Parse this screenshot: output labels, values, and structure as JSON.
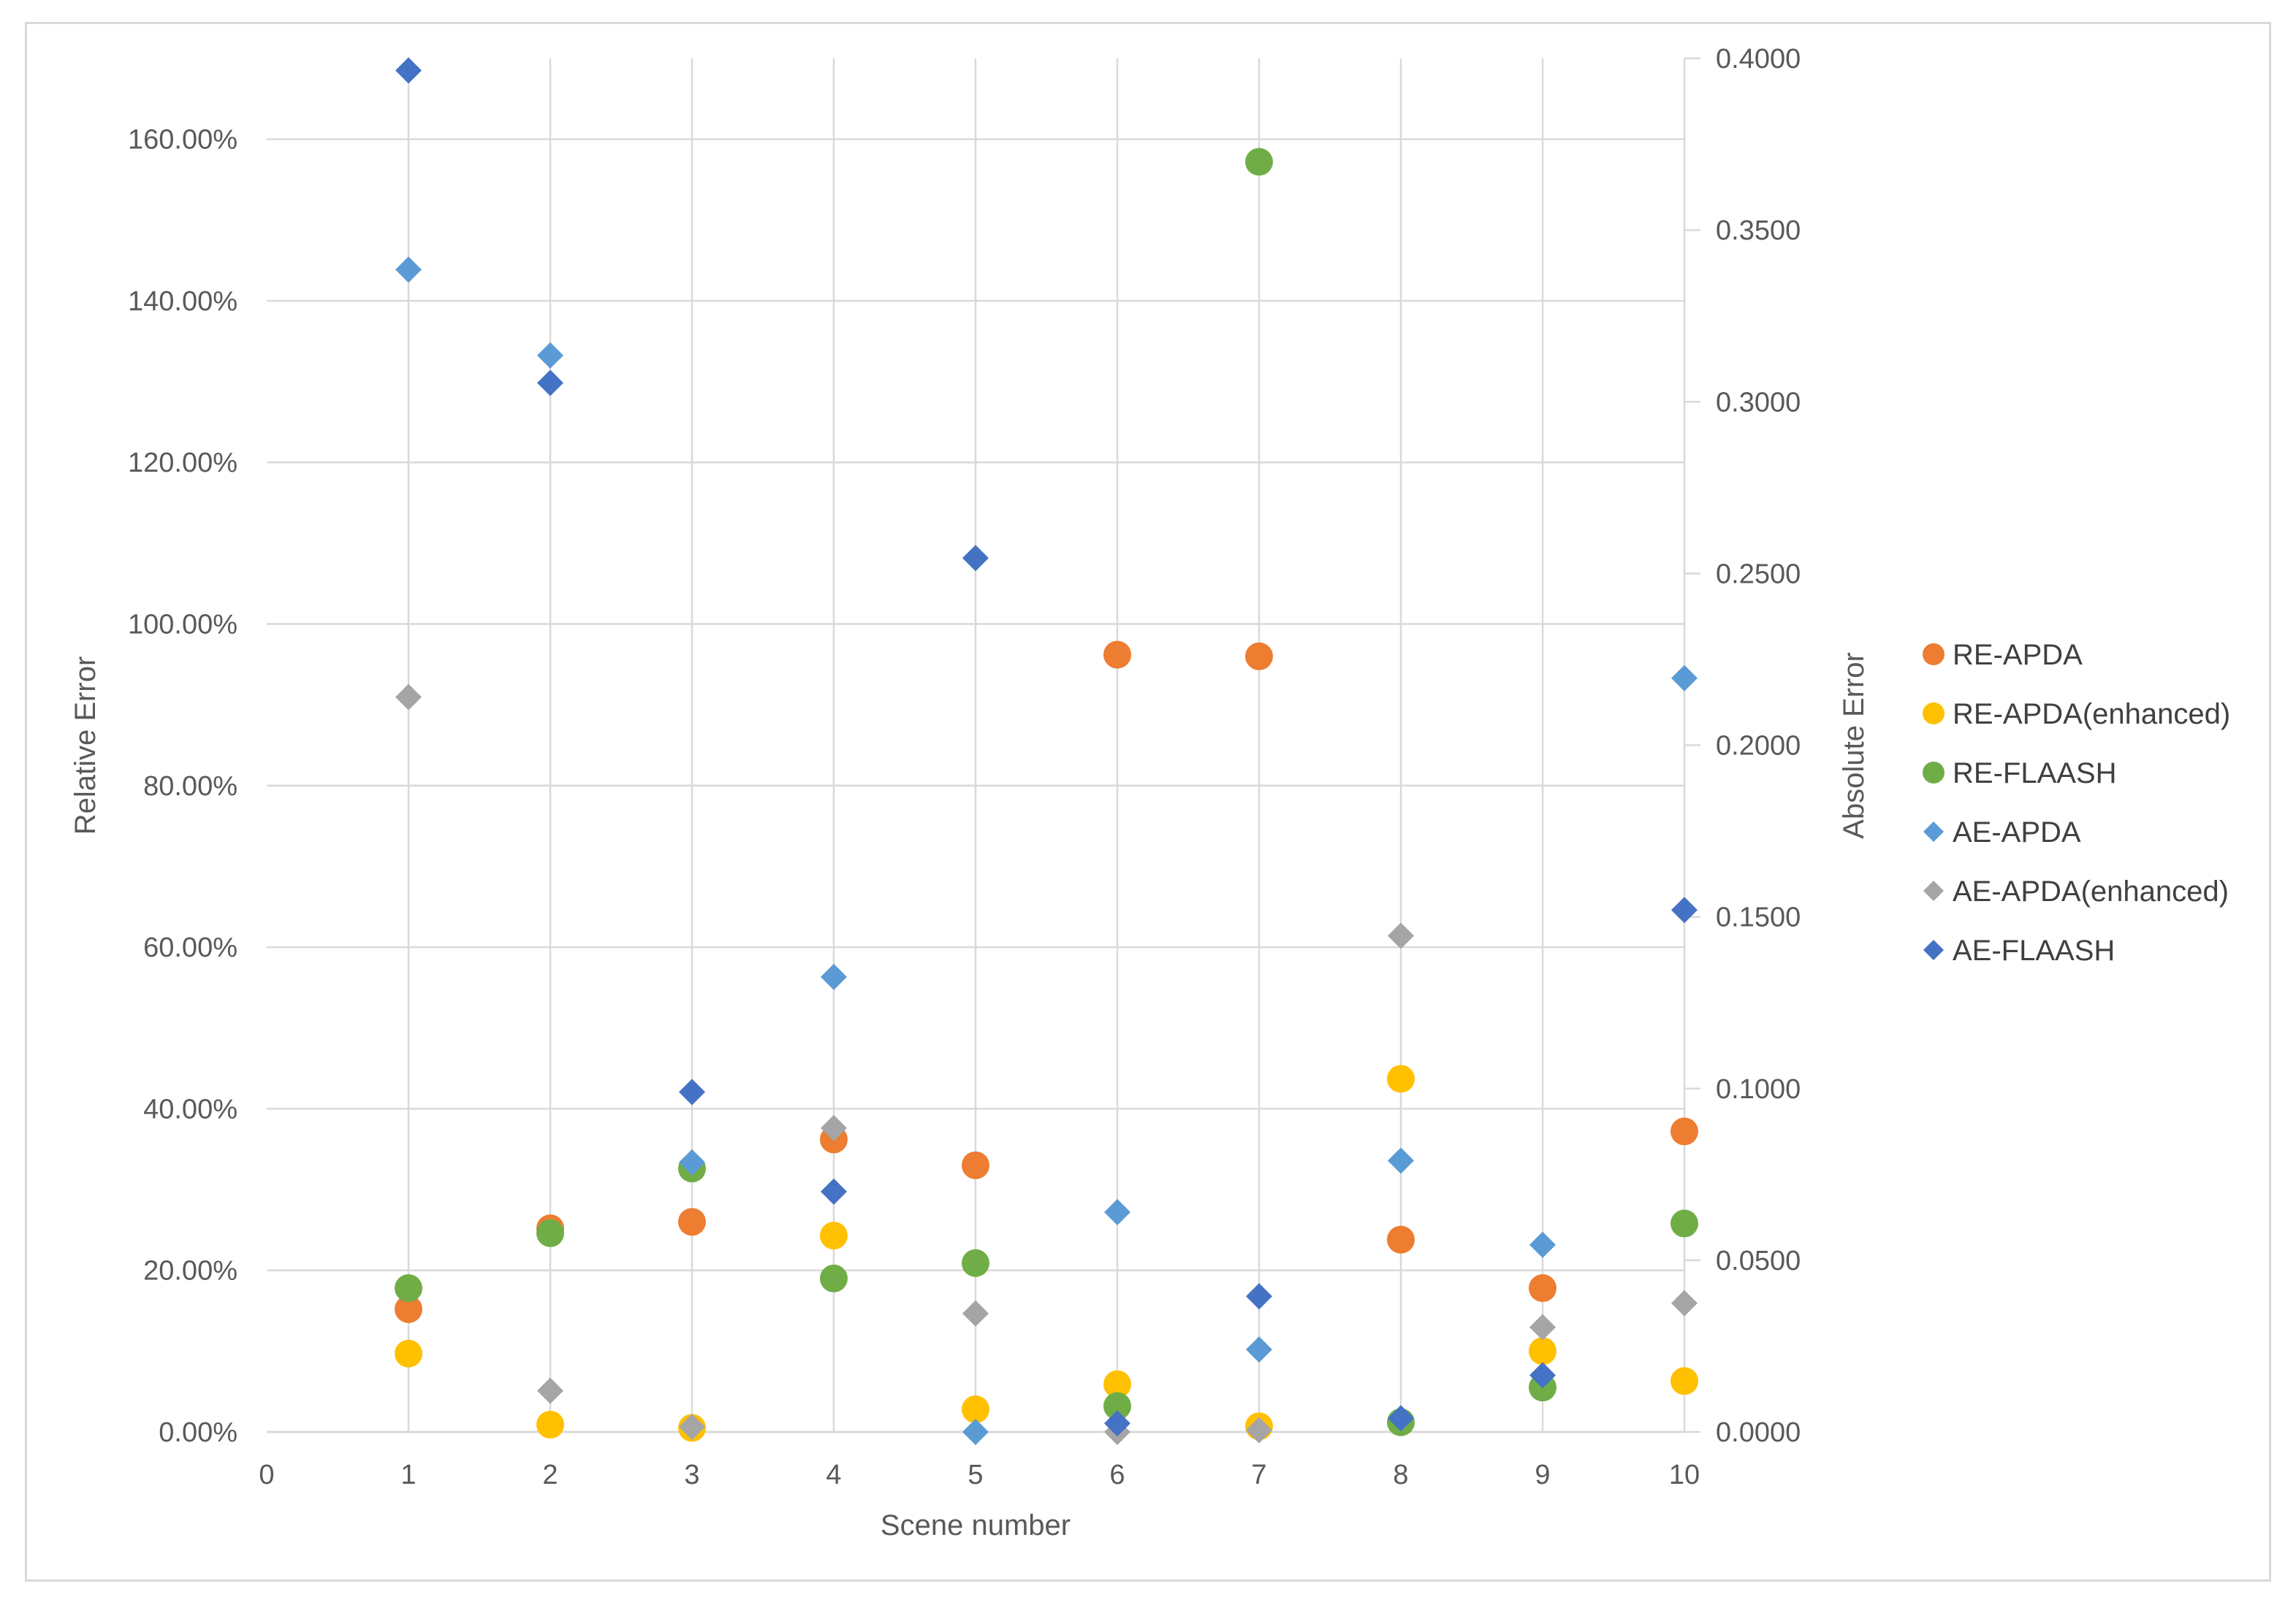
{
  "chart_data": {
    "type": "scatter",
    "title": "",
    "xlabel": "Scene number",
    "ylabel_left": "Relative Error",
    "ylabel_right": "Absolute Error",
    "xlim": [
      0,
      10
    ],
    "ylim_left": [
      0,
      1.7
    ],
    "ylim_right": [
      0,
      0.4
    ],
    "grid": true,
    "legend_position": "right",
    "x_ticks": [
      "0",
      "1",
      "2",
      "3",
      "4",
      "5",
      "6",
      "7",
      "8",
      "9",
      "10"
    ],
    "y_left_ticks": [
      "0.00%",
      "20.00%",
      "40.00%",
      "60.00%",
      "80.00%",
      "100.00%",
      "120.00%",
      "140.00%",
      "160.00%"
    ],
    "y_right_ticks": [
      "0.0000",
      "0.0500",
      "0.1000",
      "0.1500",
      "0.2000",
      "0.2500",
      "0.3000",
      "0.3500",
      "0.4000"
    ],
    "series": [
      {
        "name": "RE-APDA",
        "axis": "left",
        "marker": "circle",
        "color": "#ED7D31",
        "x": [
          1,
          2,
          3,
          4,
          5,
          6,
          7,
          8,
          9,
          10
        ],
        "values": [
          0.152,
          0.252,
          0.26,
          0.362,
          0.33,
          0.962,
          0.96,
          0.238,
          0.178,
          0.372
        ]
      },
      {
        "name": "RE-APDA(enhanced)",
        "axis": "left",
        "marker": "circle",
        "color": "#FFC000",
        "x": [
          1,
          2,
          3,
          4,
          5,
          6,
          7,
          8,
          9,
          10
        ],
        "values": [
          0.097,
          0.009,
          0.005,
          0.243,
          0.028,
          0.059,
          0.007,
          0.437,
          0.1,
          0.063
        ]
      },
      {
        "name": "RE-FLAASH",
        "axis": "left",
        "marker": "circle",
        "color": "#70AD47",
        "x": [
          1,
          2,
          3,
          4,
          5,
          6,
          7,
          8,
          9,
          10
        ],
        "values": [
          0.178,
          0.246,
          0.326,
          0.19,
          0.209,
          0.032,
          1.572,
          0.012,
          0.055,
          0.258
        ]
      },
      {
        "name": "AE-APDA",
        "axis": "right",
        "marker": "diamond",
        "color": "#5B9BD5",
        "x": [
          1,
          2,
          3,
          4,
          5,
          6,
          7,
          8,
          9,
          10
        ],
        "values": [
          0.3385,
          0.3135,
          0.0785,
          0.1325,
          0.0,
          0.064,
          0.024,
          0.079,
          0.0545,
          0.2195
        ]
      },
      {
        "name": "AE-APDA(enhanced)",
        "axis": "right",
        "marker": "diamond",
        "color": "#A5A5A5",
        "x": [
          1,
          2,
          3,
          4,
          5,
          6,
          7,
          8,
          9,
          10
        ],
        "values": [
          0.214,
          0.012,
          0.0015,
          0.0885,
          0.0345,
          0.0,
          0.0005,
          0.1445,
          0.0305,
          0.0375
        ]
      },
      {
        "name": "AE-FLAASH",
        "axis": "right",
        "marker": "diamond",
        "color": "#4472C4",
        "x": [
          1,
          2,
          3,
          4,
          5,
          6,
          7,
          8,
          9,
          10
        ],
        "values": [
          0.3965,
          0.3055,
          0.099,
          0.07,
          0.2545,
          0.0025,
          0.0395,
          0.004,
          0.0165,
          0.152
        ]
      }
    ]
  }
}
